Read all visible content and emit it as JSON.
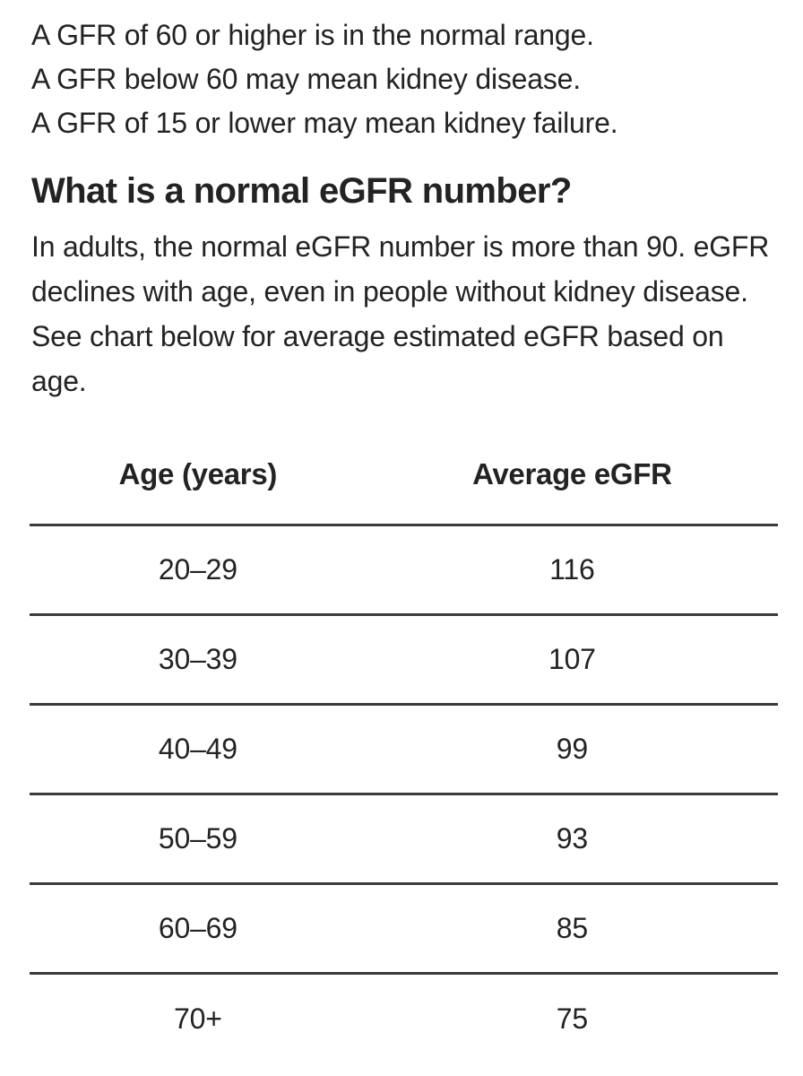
{
  "page": {
    "background": "#ffffff",
    "text_color": "#232323",
    "rule_color": "#3b3b3b"
  },
  "intro": {
    "lines": [
      "A GFR of 60 or higher is in the normal range.",
      "A GFR below 60 may mean kidney disease.",
      "A GFR of 15 or lower may mean kidney failure."
    ]
  },
  "section": {
    "heading": "What is a normal eGFR number?",
    "body": "In adults, the normal eGFR number is more than 90. eGFR declines with age, even in people without kidney disease. See chart below for average estimated eGFR based on age."
  },
  "table": {
    "columns": [
      "Age (years)",
      "Average eGFR"
    ],
    "rows": [
      {
        "age": "20–29",
        "egfr": "116"
      },
      {
        "age": "30–39",
        "egfr": "107"
      },
      {
        "age": "40–49",
        "egfr": "99"
      },
      {
        "age": "50–59",
        "egfr": "93"
      },
      {
        "age": "60–69",
        "egfr": "85"
      },
      {
        "age": "70+",
        "egfr": "75"
      }
    ]
  }
}
